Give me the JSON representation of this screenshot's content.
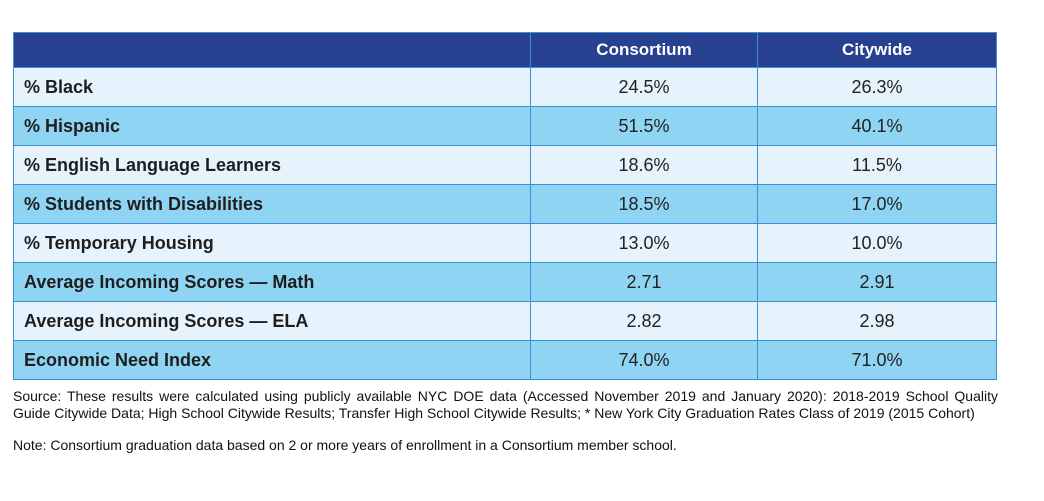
{
  "table": {
    "headers": [
      "",
      "Consortium",
      "Citywide"
    ],
    "rows": [
      {
        "label": "% Black",
        "consortium": "24.5%",
        "citywide": "26.3%"
      },
      {
        "label": "% Hispanic",
        "consortium": "51.5%",
        "citywide": "40.1%"
      },
      {
        "label": "% English Language Learners",
        "consortium": "18.6%",
        "citywide": "11.5%"
      },
      {
        "label": "% Students with Disabilities",
        "consortium": "18.5%",
        "citywide": "17.0%"
      },
      {
        "label": "% Temporary Housing",
        "consortium": "13.0%",
        "citywide": "10.0%"
      },
      {
        "label": "Average Incoming Scores — Math",
        "consortium": "2.71",
        "citywide": "2.91"
      },
      {
        "label": "Average Incoming Scores — ELA",
        "consortium": "2.82",
        "citywide": "2.98"
      },
      {
        "label": "Economic Need Index",
        "consortium": "74.0%",
        "citywide": "71.0%"
      }
    ]
  },
  "footnotes": {
    "source": "Source: These results were calculated using publicly available NYC DOE data (Accessed November 2019 and January 2020): 2018-2019 School Quality Guide Citywide Data; High School Citywide Results; Transfer High School Citywide Results; * New York City Graduation Rates Class of 2019 (2015 Cohort)",
    "note": "Note: Consortium graduation data based on 2 or more years of enrollment in a Consortium member school."
  },
  "colors": {
    "header_bg": "#27408f",
    "row_light": "#e6f3fc",
    "row_dark": "#8fd5f3",
    "border": "#3a8fd6"
  }
}
